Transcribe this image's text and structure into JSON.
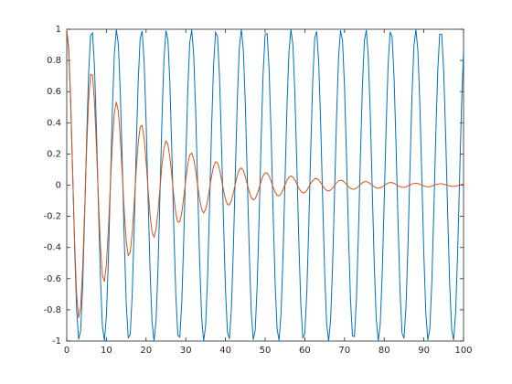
{
  "chart_data": {
    "type": "line",
    "x": [
      0,
      0.5,
      1,
      1.5,
      2,
      2.5,
      3,
      3.5,
      4,
      4.5,
      5,
      5.5,
      6,
      6.5,
      7,
      7.5,
      8,
      8.5,
      9,
      9.5,
      10,
      10.5,
      11,
      11.5,
      12,
      12.5,
      13,
      13.5,
      14,
      14.5,
      15,
      15.5,
      16,
      16.5,
      17,
      17.5,
      18,
      18.5,
      19,
      19.5,
      20,
      20.5,
      21,
      21.5,
      22,
      22.5,
      23,
      23.5,
      24,
      24.5,
      25,
      25.5,
      26,
      26.5,
      27,
      27.5,
      28,
      28.5,
      29,
      29.5,
      30,
      30.5,
      31,
      31.5,
      32,
      32.5,
      33,
      33.5,
      34,
      34.5,
      35,
      35.5,
      36,
      36.5,
      37,
      37.5,
      38,
      38.5,
      39,
      39.5,
      40,
      40.5,
      41,
      41.5,
      42,
      42.5,
      43,
      43.5,
      44,
      44.5,
      45,
      45.5,
      46,
      46.5,
      47,
      47.5,
      48,
      48.5,
      49,
      49.5,
      50,
      50.5,
      51,
      51.5,
      52,
      52.5,
      53,
      53.5,
      54,
      54.5,
      55,
      55.5,
      56,
      56.5,
      57,
      57.5,
      58,
      58.5,
      59,
      59.5,
      60,
      60.5,
      61,
      61.5,
      62,
      62.5,
      63,
      63.5,
      64,
      64.5,
      65,
      65.5,
      66,
      66.5,
      67,
      67.5,
      68,
      68.5,
      69,
      69.5,
      70,
      70.5,
      71,
      71.5,
      72,
      72.5,
      73,
      73.5,
      74,
      74.5,
      75,
      75.5,
      76,
      76.5,
      77,
      77.5,
      78,
      78.5,
      79,
      79.5,
      80,
      80.5,
      81,
      81.5,
      82,
      82.5,
      83,
      83.5,
      84,
      84.5,
      85,
      85.5,
      86,
      86.5,
      87,
      87.5,
      88,
      88.5,
      89,
      89.5,
      90,
      90.5,
      91,
      91.5,
      92,
      92.5,
      93,
      93.5,
      94,
      94.5,
      95,
      95.5,
      96,
      96.5,
      97,
      97.5,
      98,
      98.5,
      99,
      99.5,
      100
    ],
    "series": [
      {
        "color": "#0072bd",
        "values": [
          1,
          0.878,
          0.54,
          0.071,
          -0.416,
          -0.801,
          -0.99,
          -0.936,
          -0.653,
          -0.211,
          0.284,
          0.709,
          0.96,
          0.977,
          0.754,
          0.346,
          -0.146,
          -0.602,
          -0.911,
          -0.997,
          -0.839,
          -0.475,
          0.004,
          0.483,
          0.844,
          0.998,
          0.907,
          0.594,
          0.137,
          -0.355,
          -0.76,
          -0.979,
          -0.958,
          -0.702,
          -0.275,
          0.22,
          0.66,
          0.94,
          0.989,
          0.796,
          0.408,
          -0.079,
          -0.547,
          -0.881,
          -1.0,
          -0.874,
          -0.533,
          -0.062,
          0.424,
          0.806,
          0.991,
          0.933,
          0.647,
          0.202,
          -0.292,
          -0.714,
          -0.962,
          -0.975,
          -0.748,
          -0.338,
          0.154,
          0.609,
          0.915,
          0.996,
          0.834,
          0.468,
          -0.013,
          -0.491,
          -0.848,
          -0.998,
          -0.904,
          -0.588,
          -0.128,
          0.363,
          0.766,
          0.98,
          0.955,
          0.696,
          0.266,
          -0.228,
          -0.667,
          -0.942,
          -0.987,
          -0.79,
          -0.4,
          0.088,
          0.556,
          0.886,
          1.0,
          0.869,
          0.525,
          0.053,
          -0.432,
          -0.812,
          -0.992,
          -0.93,
          -0.639,
          -0.193,
          0.3,
          0.721,
          0.965,
          0.973,
          0.742,
          0.33,
          -0.163,
          -0.616,
          -0.918,
          -0.996,
          -0.829,
          -0.459,
          0.022,
          0.5,
          0.854,
          0.999,
          0.9,
          0.581,
          0.12,
          -0.371,
          -0.77,
          -0.982,
          -0.952,
          -0.69,
          -0.259,
          0.236,
          0.673,
          0.945,
          0.986,
          0.785,
          0.392,
          -0.097,
          -0.562,
          -0.89,
          -1.0,
          -0.864,
          -0.518,
          -0.044,
          0.44,
          0.817,
          0.993,
          0.927,
          0.633,
          0.185,
          -0.309,
          -0.727,
          -0.967,
          -0.971,
          -0.736,
          -0.321,
          0.172,
          0.623,
          0.922,
          0.995,
          0.824,
          0.452,
          -0.031,
          -0.507,
          -0.858,
          -0.999,
          -0.896,
          -0.573,
          -0.11,
          0.38,
          0.777,
          0.984,
          0.95,
          0.683,
          0.249,
          -0.246,
          -0.68,
          -0.948,
          -0.984,
          -0.778,
          -0.383,
          0.106,
          0.571,
          0.894,
          0.999,
          0.86,
          0.511,
          0.036,
          -0.448,
          -0.822,
          -0.994,
          -0.924,
          -0.627,
          -0.176,
          0.317,
          0.733,
          0.969,
          0.968,
          0.73,
          0.314,
          -0.18,
          -0.629,
          -0.925,
          -0.994,
          -0.82,
          -0.445,
          0.04,
          0.514,
          0.862
        ]
      },
      {
        "color": "#d95319",
        "values": [
          1,
          0.856,
          0.514,
          0.066,
          -0.376,
          -0.706,
          -0.852,
          -0.785,
          -0.535,
          -0.169,
          0.221,
          0.539,
          0.711,
          0.706,
          0.532,
          0.238,
          -0.098,
          -0.394,
          -0.581,
          -0.62,
          -0.509,
          -0.281,
          0.002,
          0.272,
          0.463,
          0.534,
          0.473,
          0.302,
          0.068,
          -0.172,
          -0.359,
          -0.451,
          -0.43,
          -0.307,
          -0.117,
          0.092,
          0.269,
          0.373,
          0.383,
          0.3,
          0.15,
          -0.028,
          -0.191,
          -0.3,
          -0.333,
          -0.284,
          -0.169,
          -0.019,
          0.128,
          0.237,
          0.284,
          0.261,
          0.177,
          0.054,
          -0.076,
          -0.181,
          -0.238,
          -0.235,
          -0.176,
          -0.077,
          0.034,
          0.133,
          0.194,
          0.206,
          0.168,
          0.092,
          -0.002,
          -0.092,
          -0.155,
          -0.178,
          -0.157,
          -0.099,
          -0.021,
          0.058,
          0.12,
          0.15,
          0.143,
          0.102,
          0.038,
          -0.032,
          -0.09,
          -0.124,
          -0.127,
          -0.1,
          -0.049,
          0.01,
          0.064,
          0.101,
          0.111,
          0.094,
          0.055,
          0.005,
          -0.043,
          -0.079,
          -0.095,
          -0.086,
          -0.058,
          -0.017,
          0.026,
          0.061,
          0.079,
          0.078,
          0.058,
          0.025,
          -0.012,
          -0.045,
          -0.065,
          -0.069,
          -0.056,
          -0.03,
          0.001,
          0.031,
          0.052,
          0.059,
          0.052,
          0.033,
          0.007,
          -0.02,
          -0.04,
          -0.05,
          -0.047,
          -0.034,
          -0.012,
          0.011,
          0.03,
          0.041,
          0.042,
          0.033,
          0.016,
          -0.004,
          -0.022,
          -0.034,
          -0.037,
          -0.031,
          -0.018,
          -0.002,
          0.015,
          0.027,
          0.031,
          0.029,
          0.019,
          0.005,
          -0.009,
          -0.02,
          -0.026,
          -0.026,
          -0.019,
          -0.008,
          0.004,
          0.015,
          0.022,
          0.023,
          0.018,
          0.01,
          -0.001,
          -0.011,
          -0.017,
          -0.02,
          -0.017,
          -0.011,
          -0.002,
          0.007,
          0.014,
          0.017,
          0.016,
          0.011,
          0.004,
          -0.004,
          -0.01,
          -0.014,
          -0.014,
          -0.011,
          -0.005,
          0.001,
          0.007,
          0.011,
          0.012,
          0.01,
          0.006,
          0,
          -0.005,
          -0.009,
          -0.011,
          -0.01,
          -0.006,
          -0.002,
          0.003,
          0.007,
          0.009,
          0.009,
          0.006,
          0.003,
          -0.001,
          -0.005,
          -0.007,
          -0.008,
          -0.006,
          -0.003,
          0,
          0.004,
          0.006
        ]
      }
    ],
    "xlim": [
      0,
      100
    ],
    "xticks": [
      0,
      10,
      20,
      30,
      40,
      50,
      60,
      70,
      80,
      90,
      100
    ],
    "ylim": [
      -1,
      1
    ],
    "yticks": [
      -1,
      -0.8,
      -0.6,
      -0.4,
      -0.2,
      0,
      0.2,
      0.4,
      0.6,
      0.8,
      1
    ],
    "grid": false
  }
}
